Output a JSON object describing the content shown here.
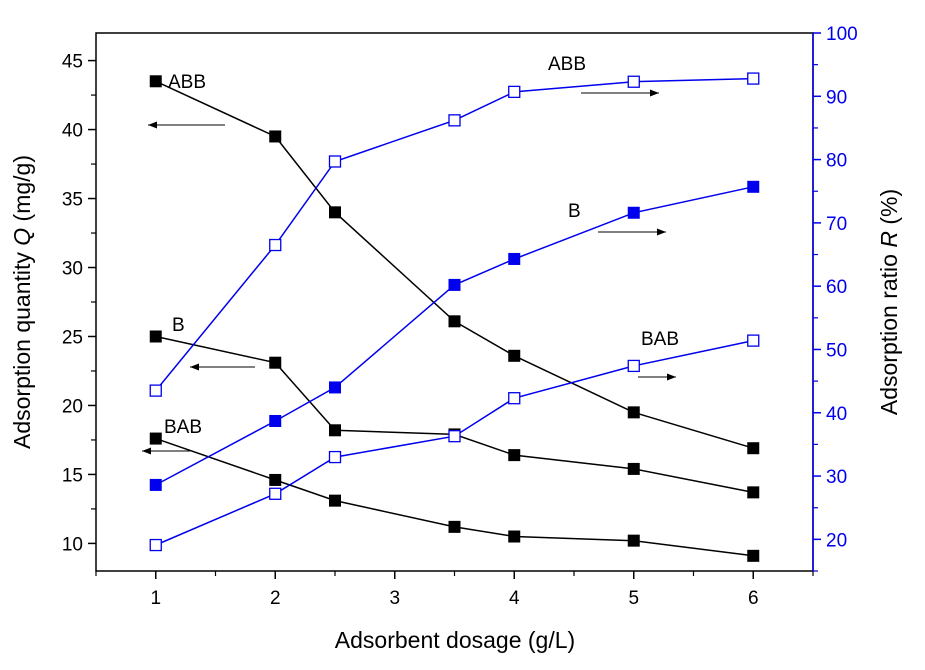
{
  "chart_data": {
    "type": "line",
    "xlabel": "Adsorbent dosage (g/L)",
    "ylabel_left_prefix": "Adsorption quantity ",
    "ylabel_left_var": "Q",
    "ylabel_left_suffix": " (mg/g)",
    "ylabel_right_prefix": "Adsorption ratio ",
    "ylabel_right_var": "R",
    "ylabel_right_suffix": " (%)",
    "xlim": [
      0.5,
      6.5
    ],
    "ylim_left": [
      8,
      47
    ],
    "ylim_right": [
      15,
      100
    ],
    "x_ticks": [
      1,
      2,
      3,
      4,
      5,
      6
    ],
    "y_left_ticks": [
      10,
      15,
      20,
      25,
      30,
      35,
      40,
      45
    ],
    "y_right_ticks": [
      20,
      30,
      40,
      50,
      60,
      70,
      80,
      90,
      100
    ],
    "colors": {
      "left": "#000000",
      "right": "#0000ee"
    },
    "series": [
      {
        "name": "ABB",
        "axis": "left",
        "marker": "filled",
        "x": [
          1,
          2,
          2.5,
          3.5,
          4,
          5,
          6
        ],
        "y": [
          43.5,
          39.5,
          34.0,
          26.1,
          23.6,
          19.5,
          16.9
        ]
      },
      {
        "name": "B",
        "axis": "left",
        "marker": "filled",
        "x": [
          1,
          2,
          2.5,
          3.5,
          4,
          5,
          6
        ],
        "y": [
          25.0,
          23.1,
          18.2,
          17.9,
          16.4,
          15.4,
          13.7
        ]
      },
      {
        "name": "BAB",
        "axis": "left",
        "marker": "filled",
        "x": [
          1,
          2,
          2.5,
          3.5,
          4,
          5,
          6
        ],
        "y": [
          17.6,
          14.6,
          13.1,
          11.2,
          10.5,
          10.2,
          9.1
        ]
      },
      {
        "name": "ABB",
        "axis": "right",
        "marker": "open",
        "x": [
          1,
          2,
          2.5,
          3.5,
          4,
          5,
          6
        ],
        "y": [
          43.5,
          66.5,
          79.7,
          86.2,
          90.7,
          92.3,
          92.8
        ]
      },
      {
        "name": "B",
        "axis": "right",
        "marker": "filled",
        "x": [
          1,
          2,
          2.5,
          3.5,
          4,
          5,
          6
        ],
        "y": [
          28.6,
          38.7,
          44.0,
          60.2,
          64.3,
          71.6,
          75.7
        ]
      },
      {
        "name": "BAB",
        "axis": "right",
        "marker": "open",
        "x": [
          1,
          2,
          2.5,
          3.5,
          4,
          5,
          6
        ],
        "y": [
          19.1,
          27.2,
          33.0,
          36.3,
          42.3,
          47.4,
          51.4
        ]
      }
    ],
    "annotations": [
      {
        "text": "ABB",
        "arrow": "left"
      },
      {
        "text": "B",
        "arrow": "left"
      },
      {
        "text": "BAB",
        "arrow": "left"
      },
      {
        "text": "ABB",
        "arrow": "right"
      },
      {
        "text": "B",
        "arrow": "right"
      },
      {
        "text": "BAB",
        "arrow": "right"
      }
    ]
  }
}
